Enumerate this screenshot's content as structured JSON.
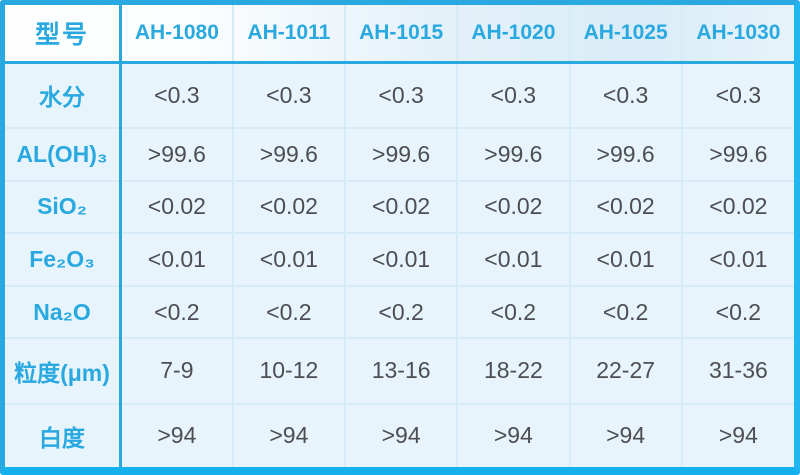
{
  "table": {
    "corner_label": "型号",
    "columns": [
      "AH-1080",
      "AH-1011",
      "AH-1015",
      "AH-1020",
      "AH-1025",
      "AH-1030"
    ],
    "rows": [
      {
        "label": "水分",
        "values": [
          "<0.3",
          "<0.3",
          "<0.3",
          "<0.3",
          "<0.3",
          "<0.3"
        ]
      },
      {
        "label": "AL(OH)₃",
        "values": [
          ">99.6",
          ">99.6",
          ">99.6",
          ">99.6",
          ">99.6",
          ">99.6"
        ]
      },
      {
        "label": "SiO₂",
        "values": [
          "<0.02",
          "<0.02",
          "<0.02",
          "<0.02",
          "<0.02",
          "<0.02"
        ]
      },
      {
        "label": "Fe₂O₃",
        "values": [
          "<0.01",
          "<0.01",
          "<0.01",
          "<0.01",
          "<0.01",
          "<0.01"
        ]
      },
      {
        "label": "Na₂O",
        "values": [
          "<0.2",
          "<0.2",
          "<0.2",
          "<0.2",
          "<0.2",
          "<0.2"
        ]
      },
      {
        "label": "粒度(μm)",
        "values": [
          "7-9",
          "10-12",
          "13-16",
          "18-22",
          "22-27",
          "31-36"
        ]
      },
      {
        "label": "白度",
        "values": [
          ">94",
          ">94",
          ">94",
          ">94",
          ">94",
          ">94"
        ]
      }
    ]
  },
  "colors": {
    "accent": "#29a9e0",
    "accent_bright": "#18b3ef",
    "cell_background": "#e8f4fb",
    "grid_line": "#d5ecf7",
    "value_text": "#4d4e52"
  }
}
